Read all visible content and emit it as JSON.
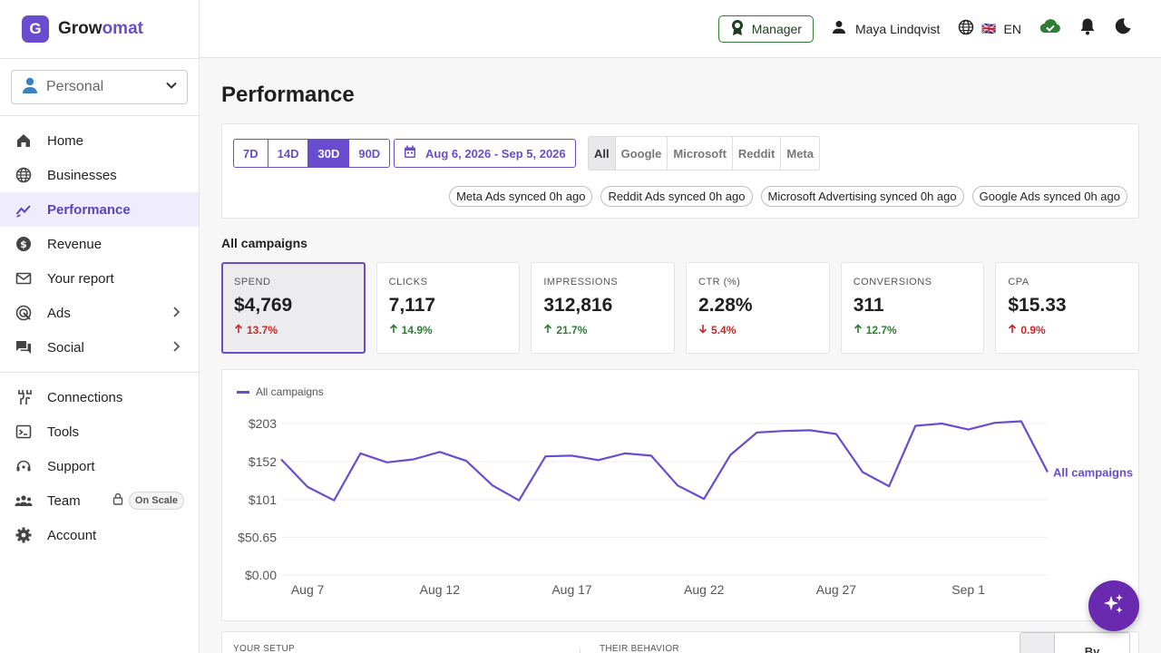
{
  "brand": {
    "logo_letter": "G",
    "name_part1": "Grow",
    "name_part2": "omat"
  },
  "workspace": {
    "label": "Personal"
  },
  "nav": {
    "items": [
      {
        "label": "Home",
        "icon": "home-icon"
      },
      {
        "label": "Businesses",
        "icon": "globe-icon"
      },
      {
        "label": "Performance",
        "icon": "trend-icon",
        "active": true
      },
      {
        "label": "Revenue",
        "icon": "dollar-icon"
      },
      {
        "label": "Your report",
        "icon": "mail-icon"
      },
      {
        "label": "Ads",
        "icon": "target-icon",
        "has_children": true
      },
      {
        "label": "Social",
        "icon": "forum-icon",
        "has_children": true
      }
    ],
    "secondary": [
      {
        "label": "Connections",
        "icon": "cable-icon"
      },
      {
        "label": "Tools",
        "icon": "terminal-icon"
      },
      {
        "label": "Support",
        "icon": "support-icon"
      },
      {
        "label": "Team",
        "icon": "group-icon",
        "badge": "On Scale"
      },
      {
        "label": "Account",
        "icon": "gear-icon"
      }
    ]
  },
  "topbar": {
    "role": "Manager",
    "user_name": "Maya Lindqvist",
    "language": "EN",
    "flag": "🇬🇧"
  },
  "page": {
    "title": "Performance"
  },
  "filters": {
    "ranges": [
      "7D",
      "14D",
      "30D",
      "90D"
    ],
    "selected_range": "30D",
    "date_range": "Aug 6, 2026 - Sep 5, 2026",
    "platforms": [
      "All",
      "Google",
      "Microsoft",
      "Reddit",
      "Meta"
    ],
    "selected_platform": "All",
    "sync": [
      "Meta Ads synced 0h ago",
      "Reddit Ads synced 0h ago",
      "Microsoft Advertising synced 0h ago",
      "Google Ads synced 0h ago"
    ]
  },
  "section": {
    "title": "All campaigns"
  },
  "kpis": [
    {
      "label": "SPEND",
      "value": "$4,769",
      "change": "13.7%",
      "direction": "up",
      "tone": "bad",
      "selected": true
    },
    {
      "label": "CLICKS",
      "value": "7,117",
      "change": "14.9%",
      "direction": "up",
      "tone": "good"
    },
    {
      "label": "IMPRESSIONS",
      "value": "312,816",
      "change": "21.7%",
      "direction": "up",
      "tone": "good"
    },
    {
      "label": "CTR (%)",
      "value": "2.28%",
      "change": "5.4%",
      "direction": "down",
      "tone": "bad"
    },
    {
      "label": "CONVERSIONS",
      "value": "311",
      "change": "12.7%",
      "direction": "up",
      "tone": "good"
    },
    {
      "label": "CPA",
      "value": "$15.33",
      "change": "0.9%",
      "direction": "up",
      "tone": "bad"
    }
  ],
  "chart_data": {
    "type": "line",
    "series": [
      {
        "name": "All campaigns",
        "color": "#6a4ccf",
        "values": [
          155,
          118,
          100,
          163,
          151,
          155,
          165,
          153,
          120,
          100,
          159,
          160,
          154,
          163,
          160,
          120,
          102,
          161,
          191,
          193,
          194,
          189,
          138,
          119,
          200,
          203,
          195,
          204,
          206,
          138
        ]
      }
    ],
    "x_start": "Aug 6",
    "x_end": "Sep 4",
    "x_ticks": [
      "Aug 7",
      "Aug 12",
      "Aug 17",
      "Aug 22",
      "Aug 27",
      "Sep 1"
    ],
    "x_tick_index": [
      1,
      6,
      11,
      16,
      21,
      26
    ],
    "y_ticks": [
      "$0.00",
      "$50.65",
      "$101",
      "$152",
      "$203"
    ],
    "y_tick_values": [
      0,
      50.65,
      101,
      152,
      203
    ],
    "ylim": [
      0,
      203
    ],
    "legend": "All campaigns",
    "end_label": "All campaigns",
    "grid": true,
    "legend_position": "top-left"
  },
  "bottom": {
    "col1": "YOUR SETUP",
    "col2": "THEIR BEHAVIOR",
    "toggle": "By"
  }
}
